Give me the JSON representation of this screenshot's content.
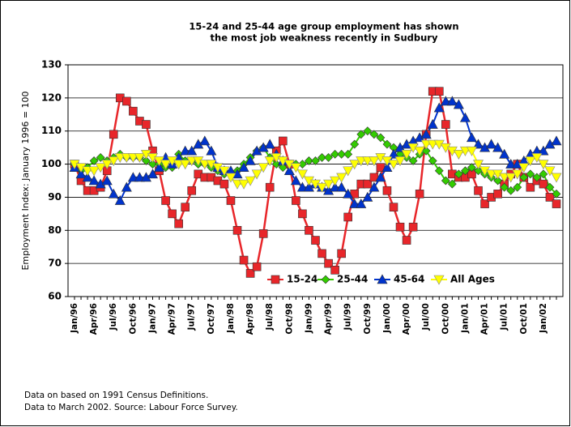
{
  "chart_data": {
    "type": "line",
    "title": [
      "15-24 and 25-44 age group employment has shown",
      "the most job weakness recently in Sudbury"
    ],
    "ylabel": "Employment Index: January 1996 = 100",
    "notes": [
      "Data on based on 1991 Census Definitions.",
      "Data to March 2002. Source: Labour Force Survey."
    ],
    "categories": [
      "Jan/96",
      null,
      null,
      "Apr/96",
      null,
      null,
      "Jul/96",
      null,
      null,
      "Oct/96",
      null,
      null,
      "Jan/97",
      null,
      null,
      "Apr/97",
      null,
      null,
      "Jul/97",
      null,
      null,
      "Oct/97",
      null,
      null,
      "Jan/98",
      null,
      null,
      "Apr/98",
      null,
      null,
      "Jul/98",
      null,
      null,
      "Oct/98",
      null,
      null,
      "Jan/99",
      null,
      null,
      "Apr/99",
      null,
      null,
      "Jul/99",
      null,
      null,
      "Oct/99",
      null,
      null,
      "Jan/00",
      null,
      null,
      "Apr/00",
      null,
      null,
      "Jul/00",
      null,
      null,
      "Oct/00",
      null,
      null,
      "Jan/01",
      null,
      null,
      "Apr/01",
      null,
      null,
      "Jul/01",
      null,
      null,
      "Oct/01",
      null,
      null,
      "Jan/02",
      null,
      null
    ],
    "series": [
      {
        "name": "15-24",
        "color": "#e8262a",
        "marker": "square",
        "values": [
          100,
          95,
          92,
          92,
          93,
          98,
          109,
          120,
          119,
          116,
          113,
          112,
          104,
          98,
          89,
          85,
          82,
          87,
          92,
          97,
          96,
          96,
          95,
          94,
          89,
          80,
          71,
          67,
          69,
          79,
          93,
          104,
          107,
          100,
          89,
          85,
          80,
          77,
          73,
          70,
          68,
          73,
          84,
          91,
          94,
          94,
          96,
          99,
          92,
          87,
          81,
          77,
          81,
          91,
          109,
          122,
          122,
          112,
          97,
          96,
          96,
          97,
          92,
          88,
          90,
          91,
          94,
          97,
          100,
          96,
          93,
          95,
          94,
          90,
          88
        ]
      },
      {
        "name": "25-44",
        "color": "#33cc00",
        "marker": "diamond",
        "values": [
          100,
          98,
          99,
          101,
          102,
          101,
          102,
          103,
          102,
          102,
          102,
          101,
          100,
          100,
          99,
          99,
          103,
          101,
          101,
          100,
          100,
          99,
          98,
          97,
          97,
          98,
          100,
          102,
          104,
          105,
          102,
          100,
          99,
          100,
          100,
          100,
          101,
          101,
          102,
          102,
          103,
          103,
          103,
          106,
          109,
          110,
          109,
          108,
          106,
          105,
          103,
          102,
          101,
          103,
          104,
          101,
          98,
          95,
          94,
          97,
          98,
          99,
          98,
          97,
          96,
          95,
          93,
          92,
          93,
          96,
          97,
          96,
          97,
          93,
          91
        ]
      },
      {
        "name": "45-64",
        "color": "#0033cc",
        "marker": "triangle",
        "values": [
          99,
          97,
          96,
          95,
          94,
          95,
          91,
          89,
          93,
          96,
          96,
          96,
          97,
          99,
          102,
          100,
          102,
          104,
          104,
          106,
          107,
          104,
          99,
          98,
          98,
          97,
          99,
          101,
          104,
          105,
          106,
          103,
          101,
          98,
          95,
          93,
          93,
          94,
          93,
          92,
          93,
          93,
          91,
          88,
          88,
          90,
          93,
          96,
          99,
          103,
          105,
          106,
          107,
          108,
          109,
          112,
          117,
          119,
          119,
          118,
          114,
          108,
          106,
          105,
          106,
          105,
          103,
          100,
          100,
          101,
          103,
          104,
          104,
          106,
          107
        ]
      },
      {
        "name": "All Ages",
        "color": "#ffff00",
        "marker": "triangle-down",
        "values": [
          100,
          99,
          98,
          98,
          99,
          100,
          101,
          102,
          102,
          102,
          102,
          103,
          102,
          101,
          100,
          101,
          100,
          100,
          101,
          101,
          100,
          100,
          99,
          98,
          96,
          94,
          94,
          95,
          97,
          99,
          101,
          102,
          101,
          100,
          99,
          97,
          95,
          94,
          93,
          94,
          95,
          96,
          98,
          100,
          101,
          101,
          101,
          102,
          101,
          100,
          101,
          103,
          105,
          104,
          106,
          106,
          106,
          105,
          104,
          103,
          104,
          104,
          100,
          98,
          97,
          97,
          96,
          96,
          97,
          99,
          101,
          102,
          100,
          98,
          96
        ]
      }
    ],
    "ylim": [
      60,
      130
    ],
    "yticks": [
      60,
      70,
      80,
      90,
      100,
      110,
      120,
      130
    ],
    "grid": true,
    "legend": "lower center"
  }
}
